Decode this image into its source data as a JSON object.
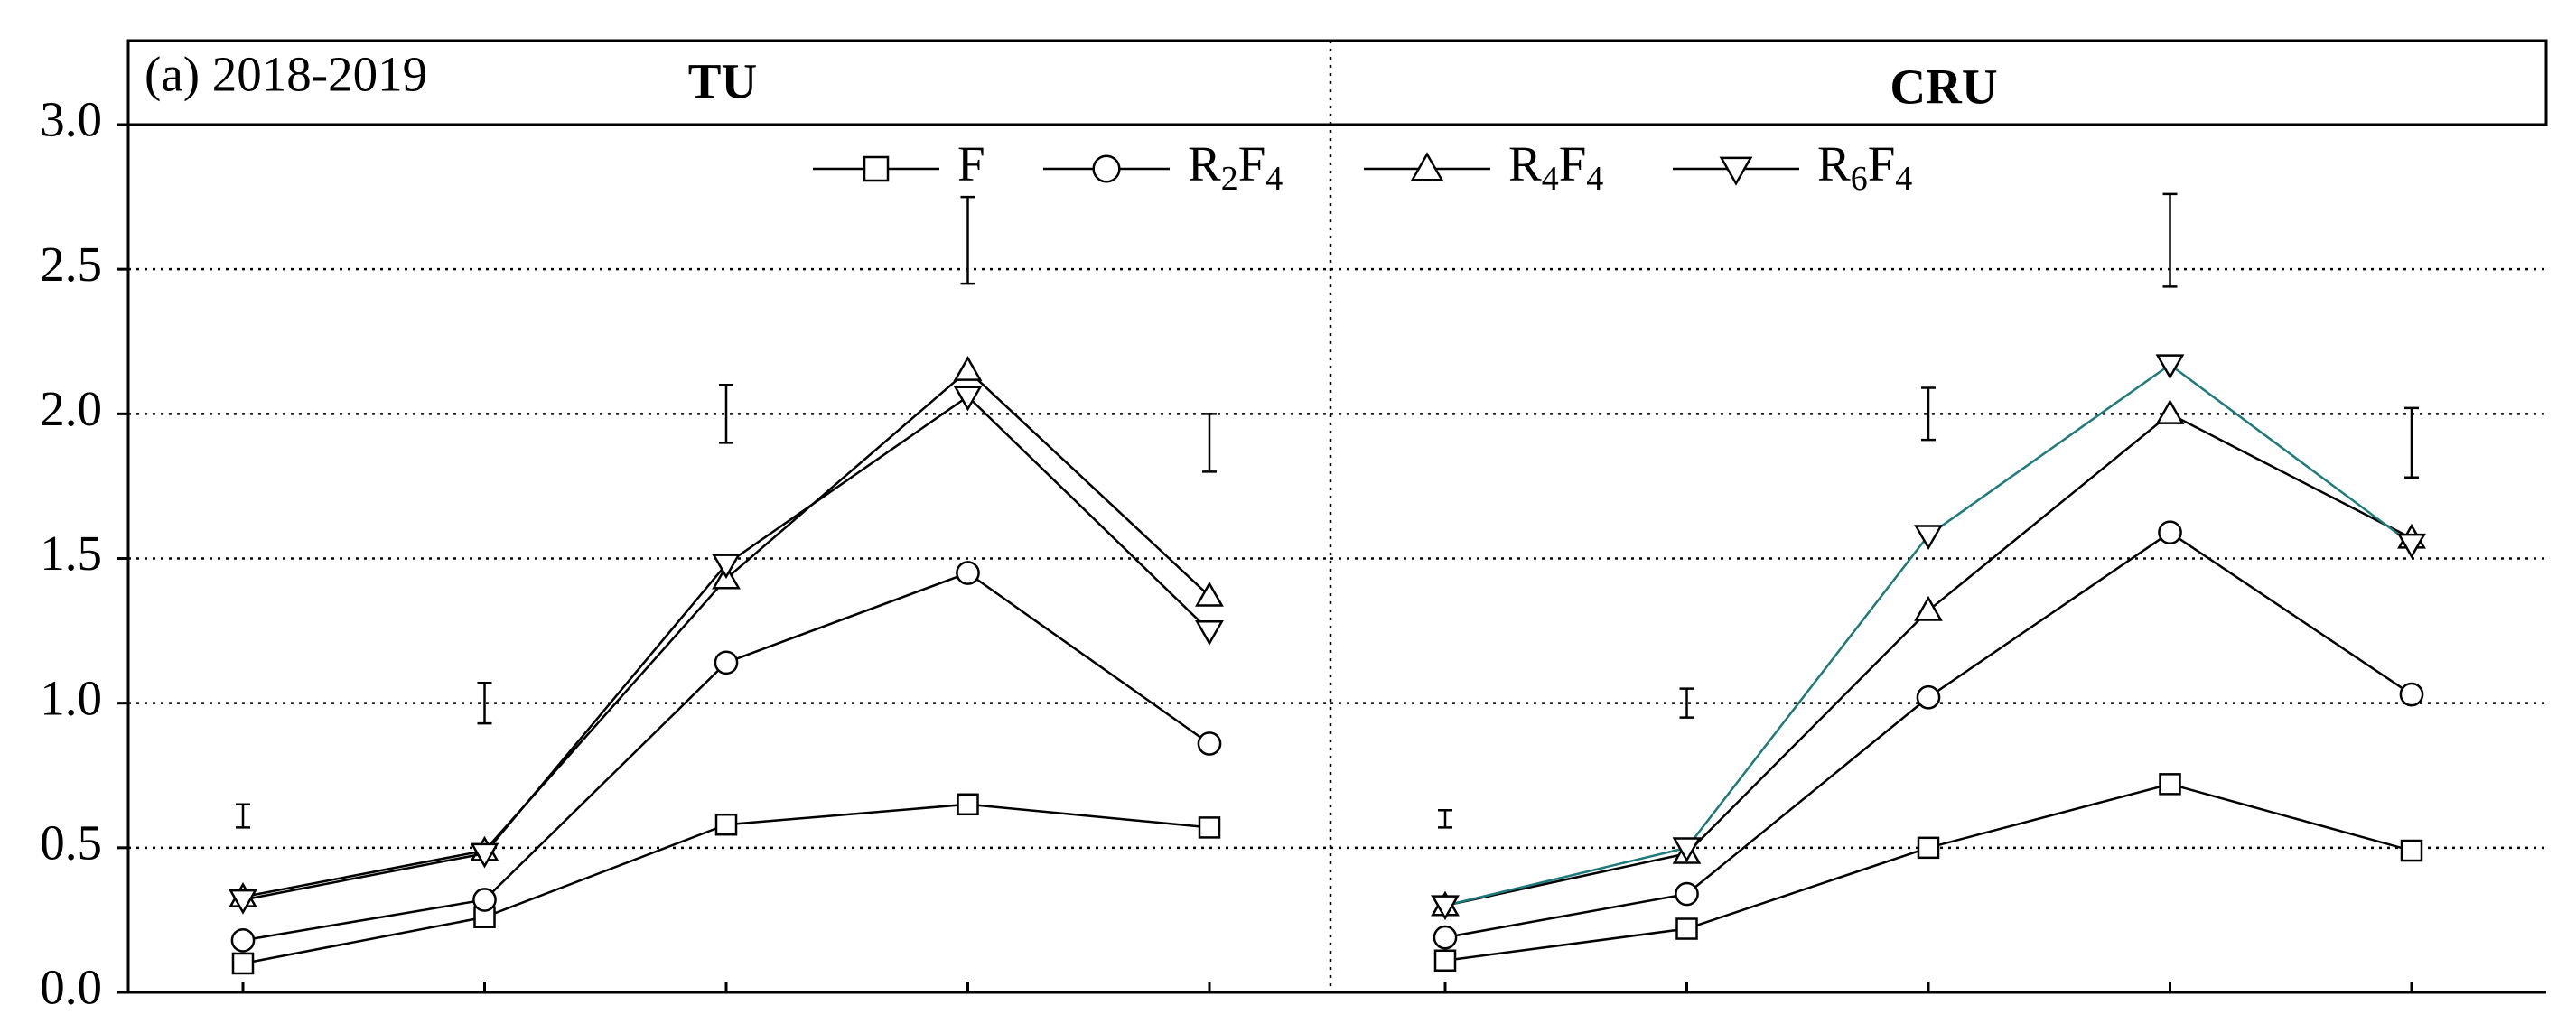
{
  "figure": {
    "label": "(a) 2018-2019"
  },
  "chart_data": [
    {
      "type": "line",
      "title": "TU",
      "categories": [
        null,
        null,
        null,
        null,
        null
      ],
      "ylim": [
        0,
        3
      ],
      "yticks": [
        {
          "value": 0,
          "label": "0.0"
        },
        {
          "value": 0.5,
          "label": "0.5"
        },
        {
          "value": 1,
          "label": "1.0"
        },
        {
          "value": 1.5,
          "label": "1.5"
        },
        {
          "value": 2,
          "label": "2.0"
        },
        {
          "value": 2.5,
          "label": "2.5"
        },
        {
          "value": 3,
          "label": "3.0"
        }
      ],
      "grid": true,
      "series": [
        {
          "name": "F",
          "marker": "square",
          "color": "#000000",
          "values": [
            0.1,
            0.26,
            0.58,
            0.65,
            0.57
          ]
        },
        {
          "name": "R2F4",
          "marker": "circle",
          "color": "#000000",
          "values": [
            0.18,
            0.32,
            1.14,
            1.45,
            0.86
          ]
        },
        {
          "name": "R4F4",
          "marker": "triangle-up",
          "color": "#000000",
          "values": [
            0.33,
            0.49,
            1.43,
            2.15,
            1.37
          ]
        },
        {
          "name": "R6F4",
          "marker": "triangle-down",
          "color": "#000000",
          "values": [
            0.32,
            0.48,
            1.48,
            2.06,
            1.25
          ]
        }
      ],
      "error_bars": {
        "values": [
          0.61,
          1.0,
          2.0,
          2.6,
          1.9
        ],
        "errors": [
          0.04,
          0.07,
          0.1,
          0.15,
          0.1
        ]
      }
    },
    {
      "type": "line",
      "title": "CRU",
      "categories": [
        null,
        null,
        null,
        null,
        null
      ],
      "ylim": [
        0,
        3
      ],
      "yticks": [
        0,
        0.5,
        1,
        1.5,
        2,
        2.5,
        3
      ],
      "grid": true,
      "series": [
        {
          "marker": "square",
          "color": "#000000",
          "values": [
            0.11,
            0.22,
            0.5,
            0.72,
            0.49
          ]
        },
        {
          "marker": "circle",
          "color": "#000000",
          "values": [
            0.19,
            0.34,
            1.02,
            1.59,
            1.03
          ]
        },
        {
          "marker": "triangle-up",
          "color": "#000000",
          "values": [
            0.3,
            0.48,
            1.32,
            2.0,
            1.57
          ]
        },
        {
          "marker": "triangle-down",
          "color": "#1f7a7a",
          "values": [
            0.3,
            0.5,
            1.58,
            2.17,
            1.55
          ]
        }
      ],
      "error_bars": {
        "values": [
          0.6,
          1.0,
          2.0,
          2.6,
          1.9
        ],
        "errors": [
          0.03,
          0.05,
          0.09,
          0.16,
          0.12
        ]
      }
    }
  ]
}
